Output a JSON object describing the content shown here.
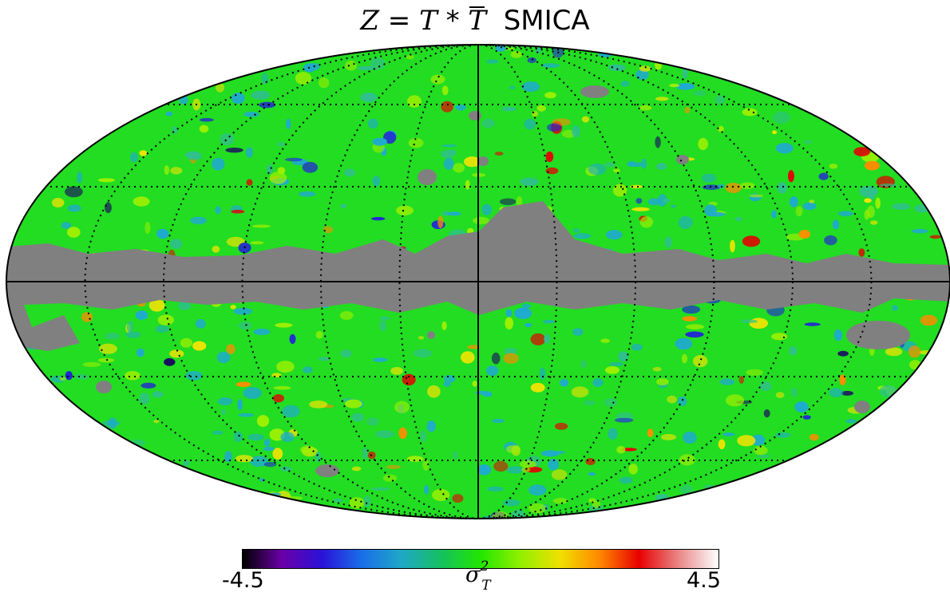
{
  "title": {
    "lhs": "Z",
    "eq": " = ",
    "t1": "T",
    "op": " * ",
    "t2": "T",
    "name": "SMICA"
  },
  "colorbar": {
    "min_label": "-4.5",
    "max_label": "4.5",
    "unit_symbol": "σ",
    "unit_sup": "2",
    "unit_sub": "T",
    "range": [
      -4.5,
      4.5
    ],
    "stops": [
      "#000000",
      "#6a00a8",
      "#2a12d8",
      "#1a6ee8",
      "#1fa7c8",
      "#15c060",
      "#22e600",
      "#90f000",
      "#f0e000",
      "#ff8800",
      "#e80000",
      "#e88888",
      "#ffffff"
    ]
  },
  "map": {
    "projection": "mollweide",
    "masked_color": "#808080",
    "background_color": "#22dd22",
    "graticule": "dotted"
  }
}
